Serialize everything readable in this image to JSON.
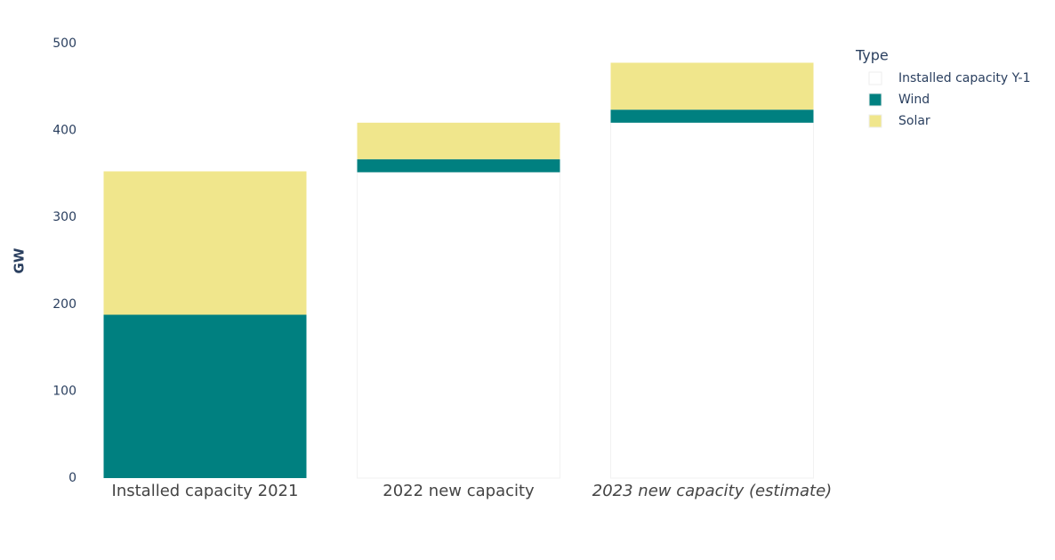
{
  "chart_data": {
    "type": "stacked_bar",
    "y_label": "GW",
    "legend_title": "Type",
    "categories": [
      "Installed capacity 2021",
      "2022 new capacity",
      "2023 new capacity (estimate)"
    ],
    "series": [
      {
        "name": "Installed capacity Y-1",
        "color": "#ffffff",
        "values": [
          0,
          352,
          409
        ]
      },
      {
        "name": "Wind",
        "color": "#008080",
        "values": [
          188,
          15,
          15
        ]
      },
      {
        "name": "Solar",
        "color": "#f0e68c",
        "values": [
          165,
          42,
          54
        ]
      }
    ],
    "ylim": [
      0,
      500
    ],
    "yticks": [
      0,
      100,
      200,
      300,
      400,
      500
    ],
    "grid": false,
    "legend": "right"
  }
}
